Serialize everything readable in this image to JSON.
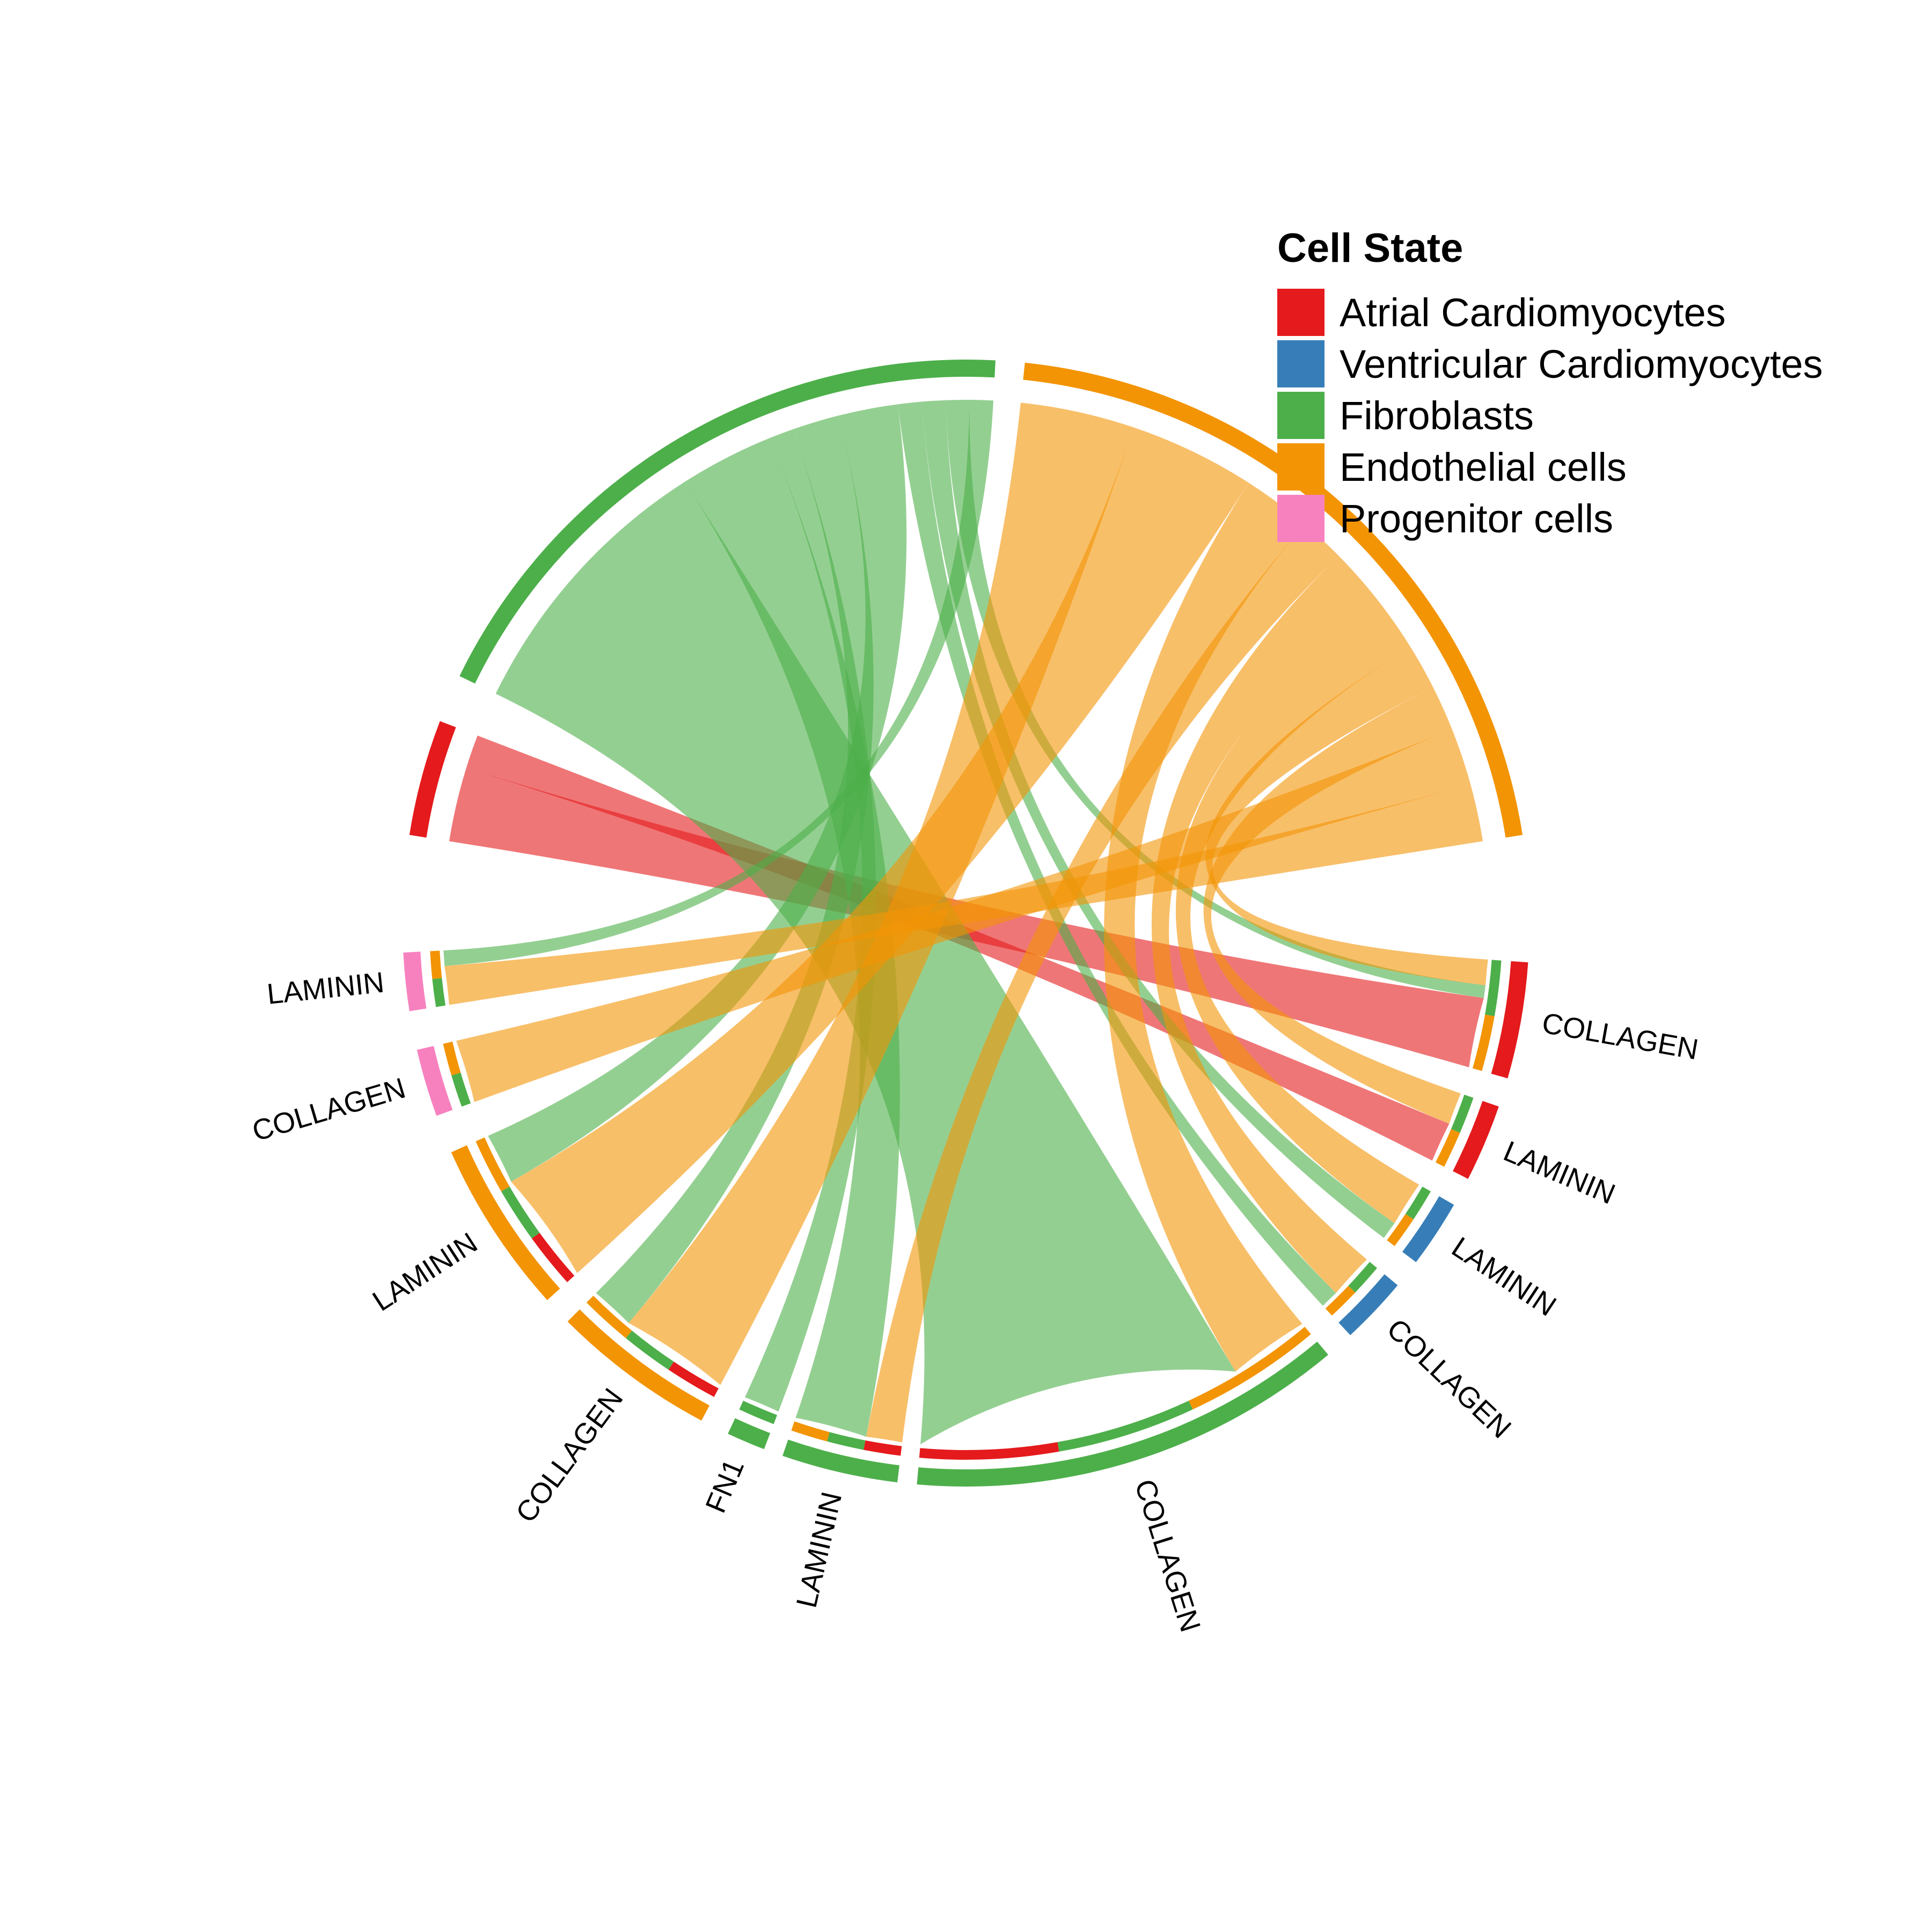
{
  "chart_data": {
    "type": "chord",
    "legend": {
      "title": "Cell State",
      "placement": "top-right",
      "items": [
        {
          "key": "atrial",
          "label": "Atrial Cardiomyocytes",
          "color": "#E41A1C"
        },
        {
          "key": "ventricular",
          "label": "Ventricular Cardiomyocytes",
          "color": "#377EB8"
        },
        {
          "key": "fibro",
          "label": "Fibroblasts",
          "color": "#4DAF4A"
        },
        {
          "key": "endo",
          "label": "Endothelial cells",
          "color": "#F39405"
        },
        {
          "key": "prog",
          "label": "Progenitor cells",
          "color": "#F781BF"
        }
      ]
    },
    "sources": [
      {
        "cell": "atrial",
        "start": 159,
        "end": 171
      },
      {
        "cell": "fibro",
        "start": 87,
        "end": 154
      },
      {
        "cell": "endo",
        "start": 9,
        "end": 84
      }
    ],
    "targets": [
      {
        "cell": "atrial",
        "pathway": "COLLAGEN",
        "start": -16,
        "end": -4,
        "inner": [
          "endo",
          "fibro"
        ]
      },
      {
        "cell": "atrial",
        "pathway": "LAMININ",
        "start": -27,
        "end": -19,
        "inner": [
          "endo",
          "fibro"
        ]
      },
      {
        "cell": "ventricular",
        "pathway": "LAMININ",
        "start": -37,
        "end": -30,
        "inner": [
          "endo",
          "fibro"
        ]
      },
      {
        "cell": "ventricular",
        "pathway": "COLLAGEN",
        "start": -47,
        "end": -40,
        "inner": [
          "endo",
          "fibro"
        ]
      },
      {
        "cell": "fibro",
        "pathway": "COLLAGEN",
        "start": -95,
        "end": -50,
        "inner": [
          "atrial",
          "fibro",
          "endo"
        ]
      },
      {
        "cell": "fibro",
        "pathway": "LAMININ",
        "start": -109,
        "end": -97,
        "inner": [
          "endo",
          "fibro",
          "atrial"
        ]
      },
      {
        "cell": "fibro",
        "pathway": "FN1",
        "start": -115,
        "end": -111,
        "inner": [
          "fibro"
        ]
      },
      {
        "cell": "endo",
        "pathway": "COLLAGEN",
        "start": -135,
        "end": -118,
        "inner": [
          "endo",
          "fibro",
          "atrial"
        ]
      },
      {
        "cell": "endo",
        "pathway": "LAMININ",
        "start": -156,
        "end": -138,
        "inner": [
          "endo",
          "fibro",
          "atrial"
        ]
      },
      {
        "cell": "prog",
        "pathway": "COLLAGEN",
        "start": -167,
        "end": -160,
        "inner": [
          "endo",
          "fibro"
        ]
      },
      {
        "cell": "prog",
        "pathway": "LAMININ",
        "start": -177,
        "end": -171,
        "inner": [
          "endo",
          "fibro"
        ]
      }
    ],
    "links": [
      {
        "from": "atrial",
        "to": "COLLAGEN (Atrial Cardiomyocytes)",
        "value": 11
      },
      {
        "from": "atrial",
        "to": "LAMININ (Atrial Cardiomyocytes)",
        "value": 5
      },
      {
        "from": "fibro",
        "to": "COLLAGEN (Fibroblasts)",
        "value": 24
      },
      {
        "from": "fibro",
        "to": "LAMININ (Fibroblasts)",
        "value": 8
      },
      {
        "from": "fibro",
        "to": "FN1 (Fibroblasts)",
        "value": 2
      },
      {
        "from": "fibro",
        "to": "COLLAGEN (Endothelial cells)",
        "value": 4
      },
      {
        "from": "fibro",
        "to": "LAMININ (Endothelial cells)",
        "value": 5
      },
      {
        "from": "fibro",
        "to": "COLLAGEN (Ventricular Cardiomyocytes)",
        "value": 2
      },
      {
        "from": "fibro",
        "to": "LAMININ (Ventricular Cardiomyocytes)",
        "value": 2
      },
      {
        "from": "fibro",
        "to": "COLLAGEN (Atrial Cardiomyocytes)",
        "value": 2
      },
      {
        "from": "fibro",
        "to": "LAMININ (Progenitor cells)",
        "value": 2
      },
      {
        "from": "endo",
        "to": "COLLAGEN (Endothelial cells)",
        "value": 10
      },
      {
        "from": "endo",
        "to": "LAMININ (Endothelial cells)",
        "value": 11
      },
      {
        "from": "endo",
        "to": "COLLAGEN (Fibroblasts)",
        "value": 6
      },
      {
        "from": "endo",
        "to": "LAMININ (Fibroblasts)",
        "value": 4
      },
      {
        "from": "endo",
        "to": "COLLAGEN (Ventricular Cardiomyocytes)",
        "value": 5
      },
      {
        "from": "endo",
        "to": "LAMININ (Ventricular Cardiomyocytes)",
        "value": 5
      },
      {
        "from": "endo",
        "to": "COLLAGEN (Atrial Cardiomyocytes)",
        "value": 4
      },
      {
        "from": "endo",
        "to": "LAMININ (Atrial Cardiomyocytes)",
        "value": 4
      },
      {
        "from": "endo",
        "to": "COLLAGEN (Progenitor cells)",
        "value": 5
      },
      {
        "from": "endo",
        "to": "LAMININ (Progenitor cells)",
        "value": 5
      }
    ]
  }
}
